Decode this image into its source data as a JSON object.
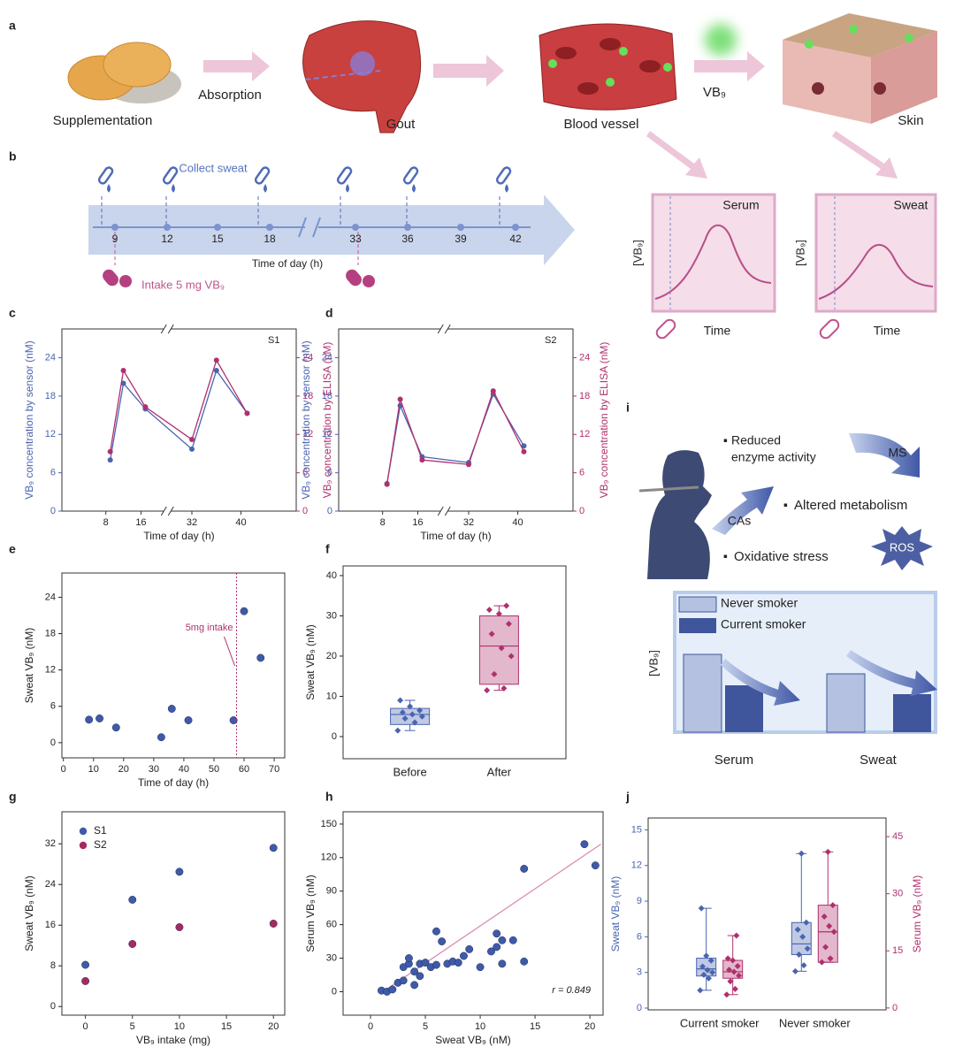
{
  "figure": {
    "a": {
      "letter": "a",
      "supplementation": "Supplementation",
      "absorption": "Absorption",
      "gout": "Gout",
      "blood_vessel": "Blood vessel",
      "vb9": "VB₉",
      "skin": "Skin"
    },
    "b": {
      "letter": "b",
      "collect_sweat": "Collect sweat",
      "ticks": [
        9,
        12,
        15,
        18,
        33,
        36,
        39,
        42
      ],
      "time_label": "Time of day (h)",
      "intake": "Intake 5 mg VB₉",
      "serum": {
        "title": "Serum",
        "ylabel": "[VB₉]",
        "xlabel": "Time"
      },
      "sweat": {
        "title": "Sweat",
        "ylabel": "[VB₉]",
        "xlabel": "Time"
      }
    },
    "i": {
      "letter": "i",
      "reduced": [
        "Reduced",
        "enzyme activity"
      ],
      "ms": "MS",
      "cas": "CAs",
      "altered": "Altered metabolism",
      "ros": "ROS",
      "oxidative": "Oxidative stress",
      "legend": [
        "Never smoker",
        "Current smoker"
      ],
      "ylabel": "[VB₉]",
      "groups": [
        "Serum",
        "Sweat"
      ]
    }
  },
  "chart_data": [
    {
      "type": "line",
      "panel": "c",
      "label": "S1",
      "x": [
        9,
        12,
        17,
        32,
        36,
        41
      ],
      "series": [
        {
          "color": "#4a64b0",
          "values": [
            8,
            20,
            16,
            9.7,
            22,
            15.3
          ]
        },
        {
          "color": "#b0306e",
          "axis": "y2",
          "values": [
            9.3,
            22,
            16.3,
            11.2,
            23.6,
            15.3
          ]
        }
      ],
      "xlabel": "Time of day (h)",
      "ylabel": "VB₉ concentration by sensor (nM)",
      "y2label": "VB₉ concentration by ELISA (nM)",
      "xlim": [
        -2,
        49
      ],
      "xbreak": [
        22,
        28
      ],
      "xticks": [
        8,
        16,
        32,
        40
      ],
      "ylim": [
        0,
        28.5
      ],
      "yticks": [
        0,
        6,
        12,
        18,
        24
      ],
      "y2lim": [
        0,
        28.5
      ],
      "y2ticks": [
        0,
        6,
        12,
        18,
        24
      ]
    },
    {
      "type": "line",
      "panel": "d",
      "label": "S2",
      "x": [
        9,
        12,
        17,
        32,
        36,
        41
      ],
      "series": [
        {
          "color": "#4a64b0",
          "values": [
            4.3,
            16.5,
            8.5,
            7.6,
            18.3,
            10.2
          ]
        },
        {
          "color": "#b0306e",
          "axis": "y2",
          "values": [
            4.2,
            17.5,
            8,
            7.3,
            18.8,
            9.3
          ]
        }
      ],
      "xlabel": "Time of day (h)",
      "ylabel": "VB₉ concentration by sensor (nM)",
      "y2label": "VB₉ concentration by ELISA (nM)",
      "xlim": [
        -2,
        49
      ],
      "xbreak": [
        22,
        28
      ],
      "xticks": [
        8,
        16,
        32,
        40
      ],
      "ylim": [
        0,
        28.5
      ],
      "yticks": [
        0,
        6,
        12,
        18,
        24
      ],
      "y2lim": [
        0,
        28.5
      ],
      "y2ticks": [
        0,
        6,
        12,
        18,
        24
      ]
    },
    {
      "type": "scatter",
      "panel": "e",
      "series": [
        {
          "color": "#3f5aa8",
          "x": [
            8.5,
            12,
            17.5,
            32.5,
            36,
            41.5,
            56.5,
            60,
            65.5
          ],
          "values": [
            3.8,
            4,
            2.5,
            0.9,
            5.6,
            3.7,
            3.7,
            21.7,
            14
          ]
        }
      ],
      "xlabel": "Time of day (h)",
      "ylabel": "Sweat VB₉ (nM)",
      "xlim": [
        -0.5,
        73.5
      ],
      "xticks": [
        0,
        10,
        20,
        30,
        40,
        50,
        60,
        70
      ],
      "ylim": [
        -2.5,
        28
      ],
      "yticks": [
        0,
        6,
        12,
        18,
        24
      ],
      "annotations": [
        {
          "text": "5mg intake",
          "x": 57.5,
          "color": "#b0306e"
        }
      ]
    },
    {
      "type": "box",
      "panel": "f",
      "categories": [
        "Before",
        "After"
      ],
      "ylabel": "Sweat VB₉ (nM)",
      "ylim": [
        -5.5,
        42.4
      ],
      "yticks": [
        0,
        10,
        20,
        30,
        40
      ],
      "series": [
        {
          "boxes": [
            {
              "color": "#4a64b0",
              "min": 1.5,
              "q1": 3,
              "median": 5.5,
              "q3": 7,
              "max": 9,
              "points": [
                1.5,
                3.5,
                4.5,
                5,
                5.5,
                6,
                6.5,
                7.5,
                9
              ]
            },
            {
              "color": "#b0306e",
              "min": 11.5,
              "q1": 13,
              "median": 22.5,
              "q3": 30,
              "max": 32.5,
              "points": [
                11.5,
                12,
                15.5,
                20,
                22,
                25.5,
                28,
                30.5,
                31.5,
                32.5
              ]
            }
          ]
        }
      ]
    },
    {
      "type": "scatter",
      "panel": "g",
      "legend": "upper left",
      "series": [
        {
          "name": "S1",
          "color": "#3f5aa8",
          "x": [
            0,
            5,
            10,
            20
          ],
          "values": [
            8.2,
            21,
            26.5,
            31.2
          ]
        },
        {
          "name": "S2",
          "color": "#a8285f",
          "x": [
            0,
            5,
            10,
            20
          ],
          "values": [
            5,
            12.3,
            15.6,
            16.3
          ]
        }
      ],
      "xlabel": "VB₉ intake (mg)",
      "ylabel": "Sweat VB₉ (nM)",
      "xlim": [
        -2.5,
        21.2
      ],
      "xticks": [
        0,
        5,
        10,
        15,
        20
      ],
      "ylim": [
        -1.7,
        38.3
      ],
      "yticks": [
        0,
        8,
        16,
        24,
        32
      ]
    },
    {
      "type": "scatter",
      "panel": "h",
      "series": [
        {
          "color": "#3f5aa8",
          "x": [
            1,
            1.5,
            2,
            2.5,
            3,
            3,
            3.5,
            3.5,
            4,
            4,
            4.5,
            4.5,
            5,
            5.5,
            6,
            6,
            6.5,
            7,
            7.5,
            8,
            8.5,
            9,
            10,
            11,
            11.5,
            11.5,
            12,
            12,
            13,
            14,
            14,
            19.5,
            20.5
          ],
          "values": [
            1,
            0,
            2,
            8,
            10,
            22,
            25,
            30,
            6,
            18,
            14,
            25,
            26,
            22,
            24,
            54,
            45,
            25,
            27,
            26,
            32,
            38,
            22,
            36,
            52,
            40,
            25,
            46,
            46,
            27,
            110,
            132,
            113
          ]
        }
      ],
      "fit": {
        "x": [
          1,
          21
        ],
        "values": [
          -1,
          132
        ],
        "color": "#d98fb5"
      },
      "annotations": [
        {
          "text": "r = 0.849"
        }
      ],
      "xlabel": "Sweat VB₉ (nM)",
      "ylabel": "Serum VB₉ (nM)",
      "xlim": [
        -2.5,
        21.2
      ],
      "xticks": [
        0,
        5,
        10,
        15,
        20
      ],
      "ylim": [
        -21,
        161
      ],
      "yticks": [
        0,
        30,
        60,
        90,
        120,
        150
      ]
    },
    {
      "type": "box",
      "panel": "j",
      "categories": [
        "Current smoker",
        "Never smoker"
      ],
      "ylabel": "Sweat VB₉ (nM)",
      "y2label": "Serum VB₉ (nM)",
      "ylim": [
        -0.15,
        16
      ],
      "yticks": [
        0,
        3,
        6,
        9,
        12,
        15
      ],
      "y2lim": [
        -0.5,
        49.9
      ],
      "y2ticks": [
        0,
        15,
        30,
        45
      ],
      "series": [
        {
          "color": "#4a64b0",
          "boxes": [
            {
              "min": 1.5,
              "q1": 2.7,
              "median": 3.3,
              "q3": 4.2,
              "max": 8.4,
              "points": [
                1.5,
                2.5,
                2.8,
                3,
                3.2,
                3.5,
                4,
                4.4,
                8.4
              ]
            },
            {
              "min": 3.1,
              "q1": 4.5,
              "median": 5.4,
              "q3": 7.2,
              "max": 13,
              "points": [
                3.1,
                3.6,
                4.5,
                5,
                6,
                6.6,
                7.2,
                13
              ]
            }
          ]
        },
        {
          "color": "#b0306e",
          "axis": "y2",
          "boxes": [
            {
              "min": 3.5,
              "q1": 7.8,
              "median": 9.5,
              "q3": 12.5,
              "max": 19,
              "points": [
                3.5,
                5,
                7,
                8.5,
                9.5,
                10,
                11,
                12.5,
                13,
                19
              ]
            },
            {
              "min": 12,
              "q1": 12,
              "median": 20,
              "q3": 27,
              "max": 41,
              "points": [
                12,
                13,
                16,
                20,
                21.5,
                24,
                27,
                41
              ]
            }
          ]
        }
      ]
    }
  ]
}
